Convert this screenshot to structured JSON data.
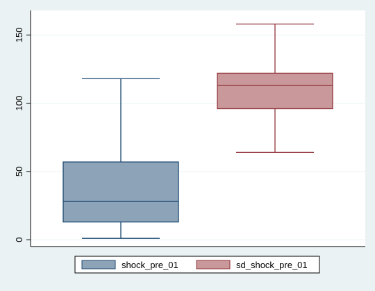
{
  "chart_data": {
    "type": "box",
    "title": "",
    "xlabel": "",
    "ylabel": "",
    "ylim": [
      -5,
      168
    ],
    "yticks": [
      0,
      50,
      100,
      150
    ],
    "grid": true,
    "legend_position": "bottom",
    "series": [
      {
        "name": "shock_pre_01",
        "whisker_low": 1,
        "q1": 13,
        "median": 28,
        "q3": 57,
        "whisker_high": 118,
        "fill": "#8da3b8",
        "stroke": "#1a476f"
      },
      {
        "name": "sd_shock_pre_01",
        "whisker_low": 64,
        "q1": 96,
        "median": 113,
        "q3": 122,
        "whisker_high": 158,
        "fill": "#c9989a",
        "stroke": "#90353b"
      }
    ]
  }
}
